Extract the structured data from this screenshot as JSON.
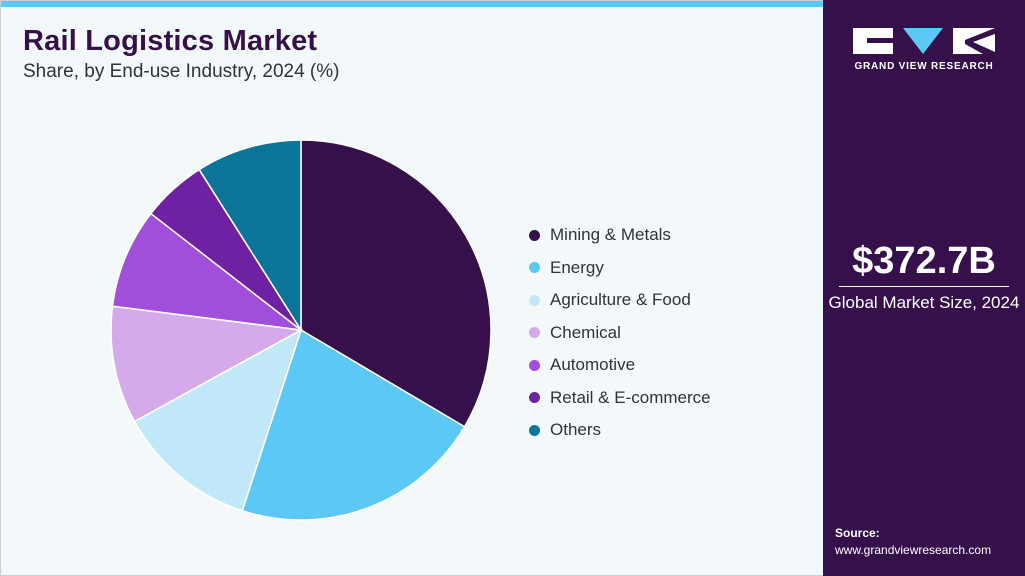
{
  "header": {
    "title": "Rail Logistics Market",
    "subtitle": "Share, by End-use Industry, 2024 (%)"
  },
  "colors": {
    "brand_dark": "#35104a",
    "accent": "#5bc8f5"
  },
  "chart_data": {
    "type": "pie",
    "categories": [
      "Mining & Metals",
      "Energy",
      "Agriculture & Food",
      "Chemical",
      "Automotive",
      "Retail & E-commerce",
      "Others"
    ],
    "values": [
      33.5,
      21.5,
      12.0,
      10.0,
      8.5,
      5.5,
      9.0
    ],
    "colors": [
      "#35104a",
      "#5bc8f5",
      "#c0e8f8",
      "#d4aaeb",
      "#a14fdb",
      "#6f21a3",
      "#0b7499"
    ],
    "start_angle_deg": 0,
    "direction": "clockwise",
    "legend_position": "right"
  },
  "sidebar": {
    "brand_name": "GRAND VIEW RESEARCH",
    "market_size": "$372.7B",
    "market_size_caption": "Global Market Size, 2024",
    "source_label": "Source:",
    "source_url": "www.grandviewresearch.com"
  }
}
